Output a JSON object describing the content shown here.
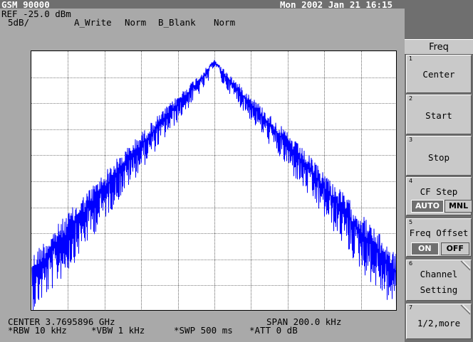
{
  "header": {
    "mode": "GSM 90000",
    "datetime": "Mon 2002 Jan 21 16:15",
    "ref_level": "REF -25.0 dBm",
    "scale": "5dB/",
    "trace_a": "A_Write",
    "trace_a_mode": "Norm",
    "trace_b": "B_Blank",
    "trace_b_mode": "Norm"
  },
  "footer": {
    "center": "CENTER 3.7695896 GHz",
    "span": "SPAN 200.0 kHz",
    "rbw": "*RBW 10 kHz",
    "vbw": "*VBW 1 kHz",
    "swp": "*SWP 500 ms",
    "att": "*ATT 0 dB"
  },
  "menu": {
    "title": "Freq",
    "keys": [
      {
        "num": "1",
        "label": "Center"
      },
      {
        "num": "2",
        "label": "Start"
      },
      {
        "num": "3",
        "label": "Stop"
      },
      {
        "num": "4",
        "label": "CF Step",
        "opt_a": "AUTO",
        "opt_b": "MNL"
      },
      {
        "num": "5",
        "label": "Freq Offset",
        "opt_a": "ON",
        "opt_b": "OFF"
      },
      {
        "num": "6",
        "label": "Channel",
        "label2": "Setting"
      },
      {
        "num": "7",
        "label": "1/2,more"
      }
    ]
  },
  "colors": {
    "trace": "#0000ff",
    "background": "#a9a9a9",
    "grid": "#000000"
  }
}
